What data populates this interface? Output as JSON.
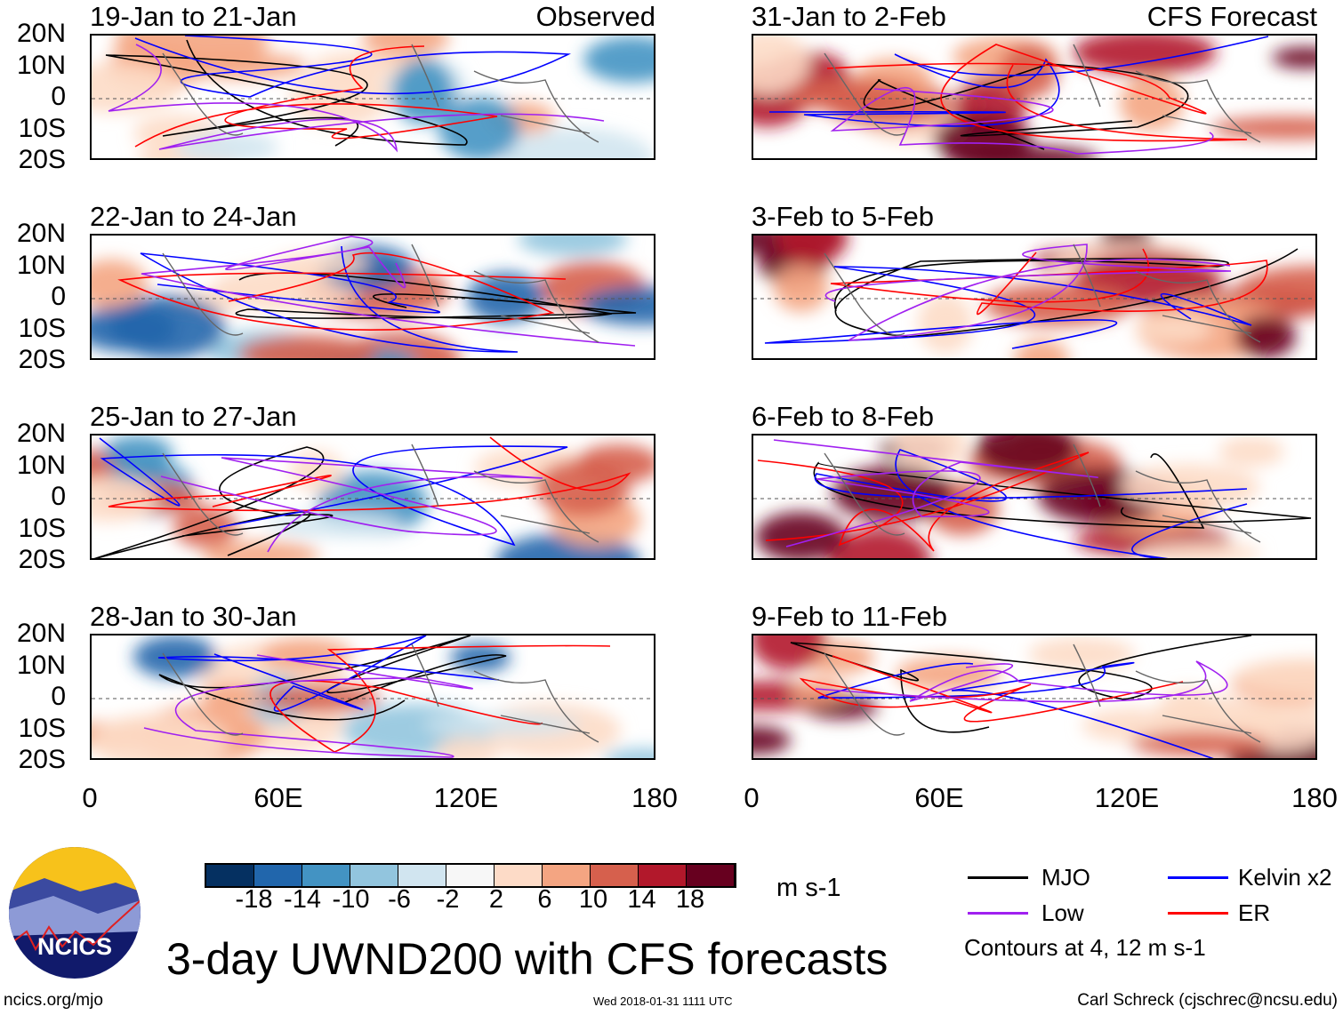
{
  "panels_left": [
    {
      "title": "19-Jan to 21-Jan",
      "tag": "Observed"
    },
    {
      "title": "22-Jan to 24-Jan"
    },
    {
      "title": "25-Jan to 27-Jan"
    },
    {
      "title": "28-Jan to 30-Jan"
    }
  ],
  "panels_right": [
    {
      "title": "31-Jan to 2-Feb",
      "tag": "CFS Forecast"
    },
    {
      "title": "3-Feb to 5-Feb"
    },
    {
      "title": "6-Feb to 8-Feb"
    },
    {
      "title": "9-Feb to 11-Feb"
    }
  ],
  "lat_labels": [
    "20N",
    "10N",
    "0",
    "10S",
    "20S"
  ],
  "lon_labels": [
    "0",
    "60E",
    "120E",
    "180"
  ],
  "colorbar": {
    "colors": [
      "#053061",
      "#2166ac",
      "#4393c3",
      "#92c5de",
      "#d1e5f0",
      "#f7f7f7",
      "#fddbc7",
      "#f4a582",
      "#d6604d",
      "#b2182b",
      "#67001f"
    ],
    "labels": [
      "-18",
      "-14",
      "-10",
      "-6",
      "-2",
      "2",
      "6",
      "10",
      "14",
      "18"
    ],
    "units": "m s-1"
  },
  "legend": {
    "items": [
      {
        "label": "MJO",
        "color": "#000000"
      },
      {
        "label": "Kelvin x2",
        "color": "#0000ff"
      },
      {
        "label": "Low",
        "color": "#a020f0"
      },
      {
        "label": "ER",
        "color": "#ff0000"
      }
    ],
    "note": "Contours at 4, 12 m s-1"
  },
  "title": "3-day UWND200 with CFS forecasts",
  "logo_text": "NCICS",
  "footer": {
    "url": "ncics.org/mjo",
    "timestamp": "Wed 2018-01-31 1111 UTC",
    "author": "Carl Schreck (cjschrec@ncsu.edu)"
  }
}
